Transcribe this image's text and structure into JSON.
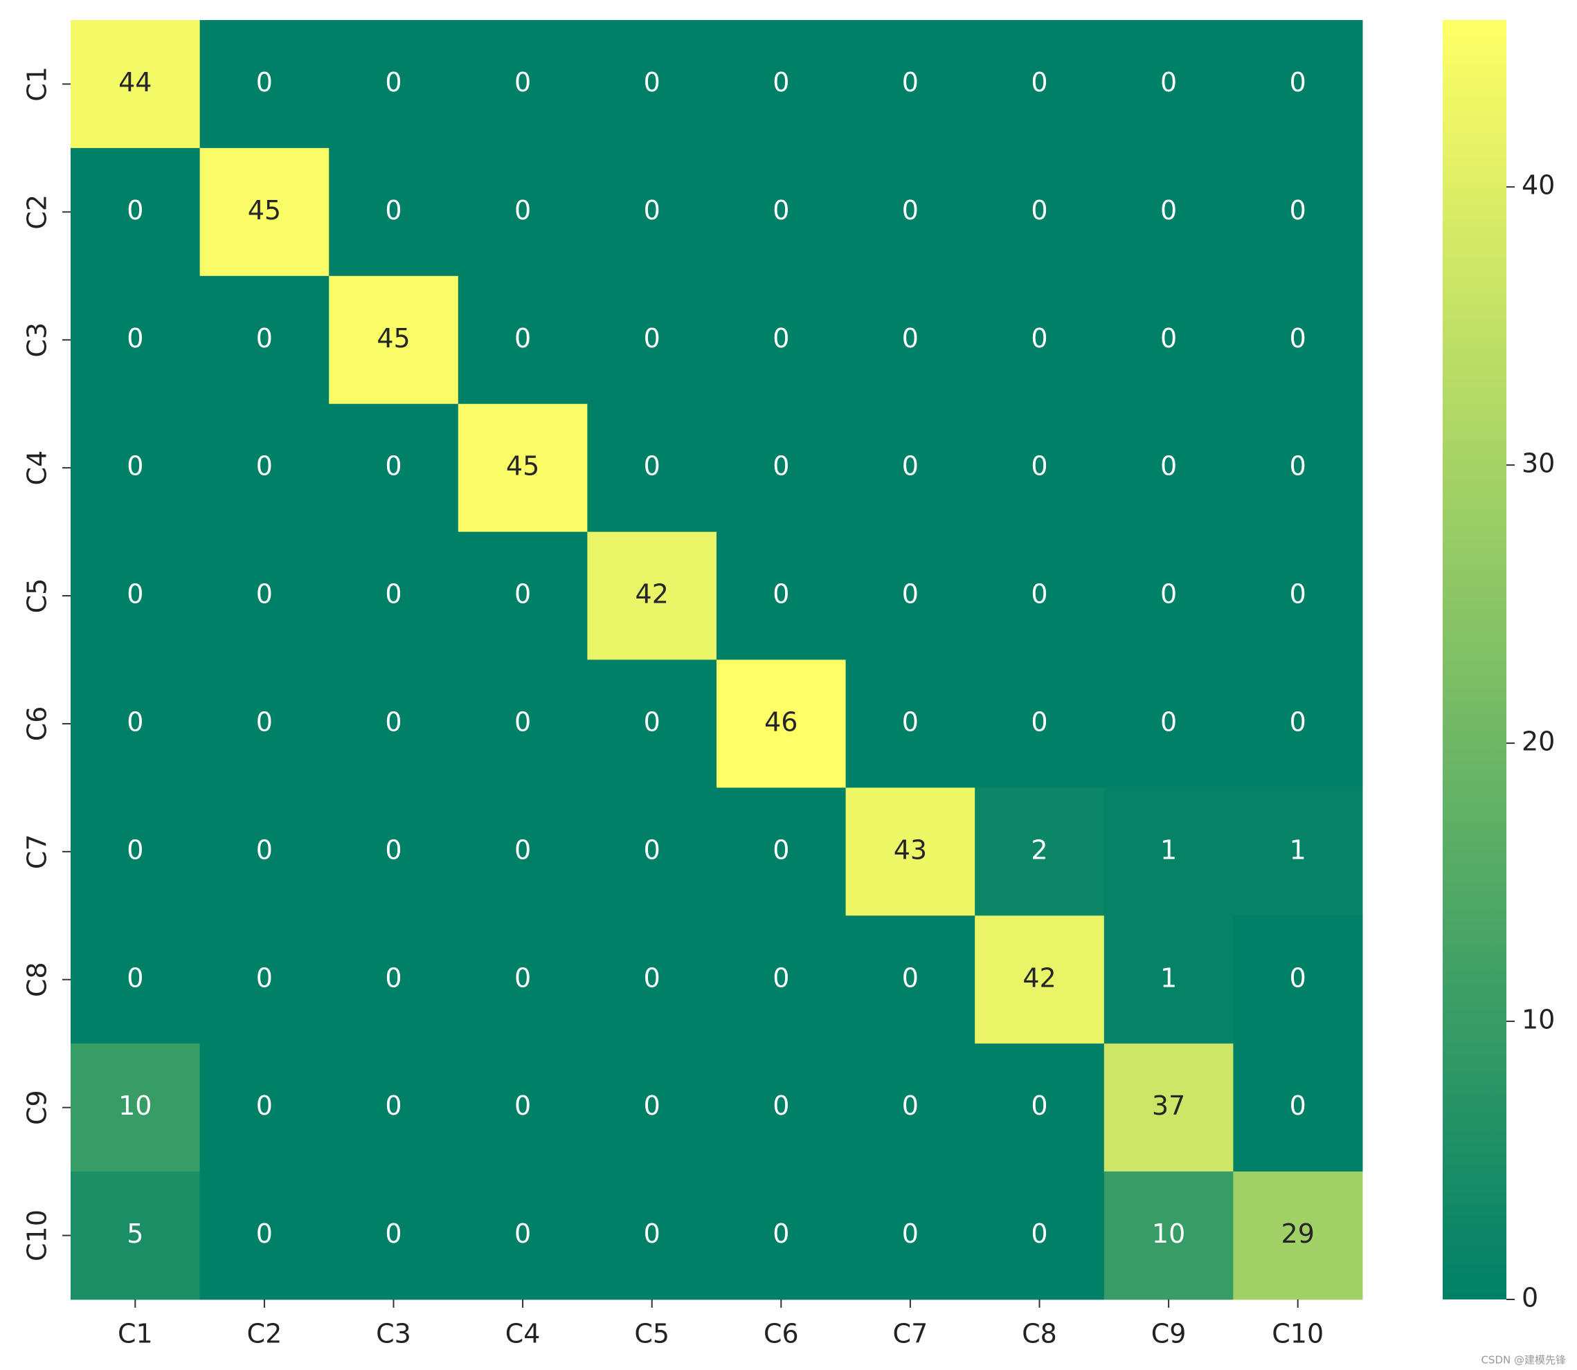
{
  "chart_data": {
    "type": "heatmap",
    "x_categories": [
      "C1",
      "C2",
      "C3",
      "C4",
      "C5",
      "C6",
      "C7",
      "C8",
      "C9",
      "C10"
    ],
    "y_categories": [
      "C1",
      "C2",
      "C3",
      "C4",
      "C5",
      "C6",
      "C7",
      "C8",
      "C9",
      "C10"
    ],
    "values": [
      [
        44,
        0,
        0,
        0,
        0,
        0,
        0,
        0,
        0,
        0
      ],
      [
        0,
        45,
        0,
        0,
        0,
        0,
        0,
        0,
        0,
        0
      ],
      [
        0,
        0,
        45,
        0,
        0,
        0,
        0,
        0,
        0,
        0
      ],
      [
        0,
        0,
        0,
        45,
        0,
        0,
        0,
        0,
        0,
        0
      ],
      [
        0,
        0,
        0,
        0,
        42,
        0,
        0,
        0,
        0,
        0
      ],
      [
        0,
        0,
        0,
        0,
        0,
        46,
        0,
        0,
        0,
        0
      ],
      [
        0,
        0,
        0,
        0,
        0,
        0,
        43,
        2,
        1,
        1
      ],
      [
        0,
        0,
        0,
        0,
        0,
        0,
        0,
        42,
        1,
        0
      ],
      [
        10,
        0,
        0,
        0,
        0,
        0,
        0,
        0,
        37,
        0
      ],
      [
        5,
        0,
        0,
        0,
        0,
        0,
        0,
        0,
        10,
        29
      ]
    ],
    "colormap": {
      "low": "#008066",
      "high": "#ffff66"
    },
    "clim": [
      0,
      46
    ],
    "colorbar_ticks": [
      0,
      10,
      20,
      30,
      40
    ],
    "watermark": "CSDN @建模先锋"
  }
}
